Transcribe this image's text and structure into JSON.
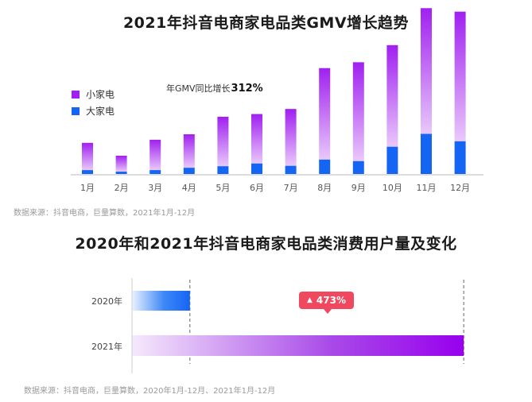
{
  "chart_data": [
    {
      "type": "bar",
      "stacked": true,
      "title": "2021年抖音电商家电品类GMV增长趋势",
      "categories": [
        "1月",
        "2月",
        "3月",
        "4月",
        "5月",
        "6月",
        "7月",
        "8月",
        "9月",
        "10月",
        "11月",
        "12月"
      ],
      "series": [
        {
          "name": "大家电",
          "color": "#1565f5",
          "values": [
            1.0,
            0.6,
            1.0,
            1.6,
            2.0,
            2.7,
            2.1,
            3.7,
            3.3,
            7.0,
            10.3,
            8.4
          ]
        },
        {
          "name": "小家电",
          "color": "#a020f0",
          "values": [
            7.0,
            4.1,
            7.8,
            8.6,
            12.7,
            12.7,
            14.6,
            23.5,
            25.4,
            26.1,
            32.3,
            33.3
          ]
        }
      ],
      "annotation": {
        "label": "年GMV同比增长",
        "value": "312%"
      },
      "legend_position": "top-left",
      "source": "数据来源：抖音电商，巨量算数，2021年1月-12月"
    },
    {
      "type": "bar",
      "orientation": "horizontal",
      "title": "2020年和2021年抖音电商家电品类消费用户量及变化",
      "categories": [
        "2020年",
        "2021年"
      ],
      "values": [
        1,
        5.73
      ],
      "colors": {
        "2020年": "#1565f5",
        "2021年": "#a020f0"
      },
      "change_label": "473%",
      "source": "数据来源：抖音电商，巨量算数，2020年1月-12月、2021年1月-12月"
    }
  ]
}
